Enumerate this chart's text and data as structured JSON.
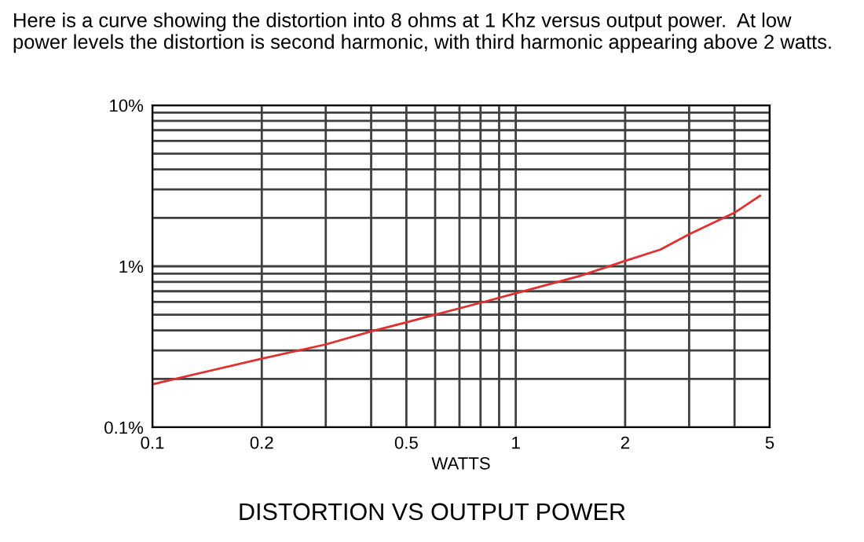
{
  "chart_data": {
    "type": "line",
    "title": "DISTORTION VS OUTPUT POWER",
    "xlabel": "WATTS",
    "annotations": [
      "Here is a curve showing the distortion into 8 ohms at 1 Khz versus output power.  At low\npower levels the distortion is second harmonic, with third harmonic appearing above 2 watts."
    ],
    "log": "xy",
    "grid": true,
    "marker": "none",
    "line_style": "solid",
    "xlim": [
      0.1,
      5
    ],
    "ylim": [
      0.1,
      10
    ],
    "xticks": [
      0.1,
      0.2,
      {
        "value": 0.3,
        "label": null
      },
      {
        "value": 0.4,
        "label": null
      },
      0.5,
      {
        "value": 0.6,
        "label": null
      },
      {
        "value": 0.7,
        "label": null
      },
      {
        "value": 0.8,
        "label": null
      },
      {
        "value": 0.9,
        "label": null
      },
      1,
      2,
      {
        "value": 3,
        "label": null
      },
      {
        "value": 4,
        "label": null
      },
      5
    ],
    "yticks": [
      {
        "value": 0.1,
        "label": "0.1%"
      },
      {
        "value": 0.2,
        "label": null
      },
      {
        "value": 0.3,
        "label": null
      },
      {
        "value": 0.4,
        "label": null
      },
      {
        "value": 0.5,
        "label": null
      },
      {
        "value": 0.6,
        "label": null
      },
      {
        "value": 0.7,
        "label": null
      },
      {
        "value": 0.8,
        "label": null
      },
      {
        "value": 0.9,
        "label": null
      },
      {
        "value": 1,
        "label": "1%"
      },
      {
        "value": 2,
        "label": null
      },
      {
        "value": 3,
        "label": null
      },
      {
        "value": 4,
        "label": null
      },
      {
        "value": 5,
        "label": null
      },
      {
        "value": 6,
        "label": null
      },
      {
        "value": 7,
        "label": null
      },
      {
        "value": 8,
        "label": null
      },
      {
        "value": 9,
        "label": null
      },
      {
        "value": 10,
        "label": "10%"
      }
    ],
    "series": [
      {
        "color": "#e03030",
        "x": [
          0.1,
          0.2,
          0.3,
          0.4,
          0.5,
          0.6,
          0.8,
          1,
          1.5,
          2,
          2.5,
          3,
          4,
          4.7
        ],
        "values": [
          0.185,
          0.267,
          0.327,
          0.394,
          0.449,
          0.5,
          0.593,
          0.68,
          0.87,
          1.08,
          1.27,
          1.58,
          2.15,
          2.74
        ]
      }
    ]
  }
}
